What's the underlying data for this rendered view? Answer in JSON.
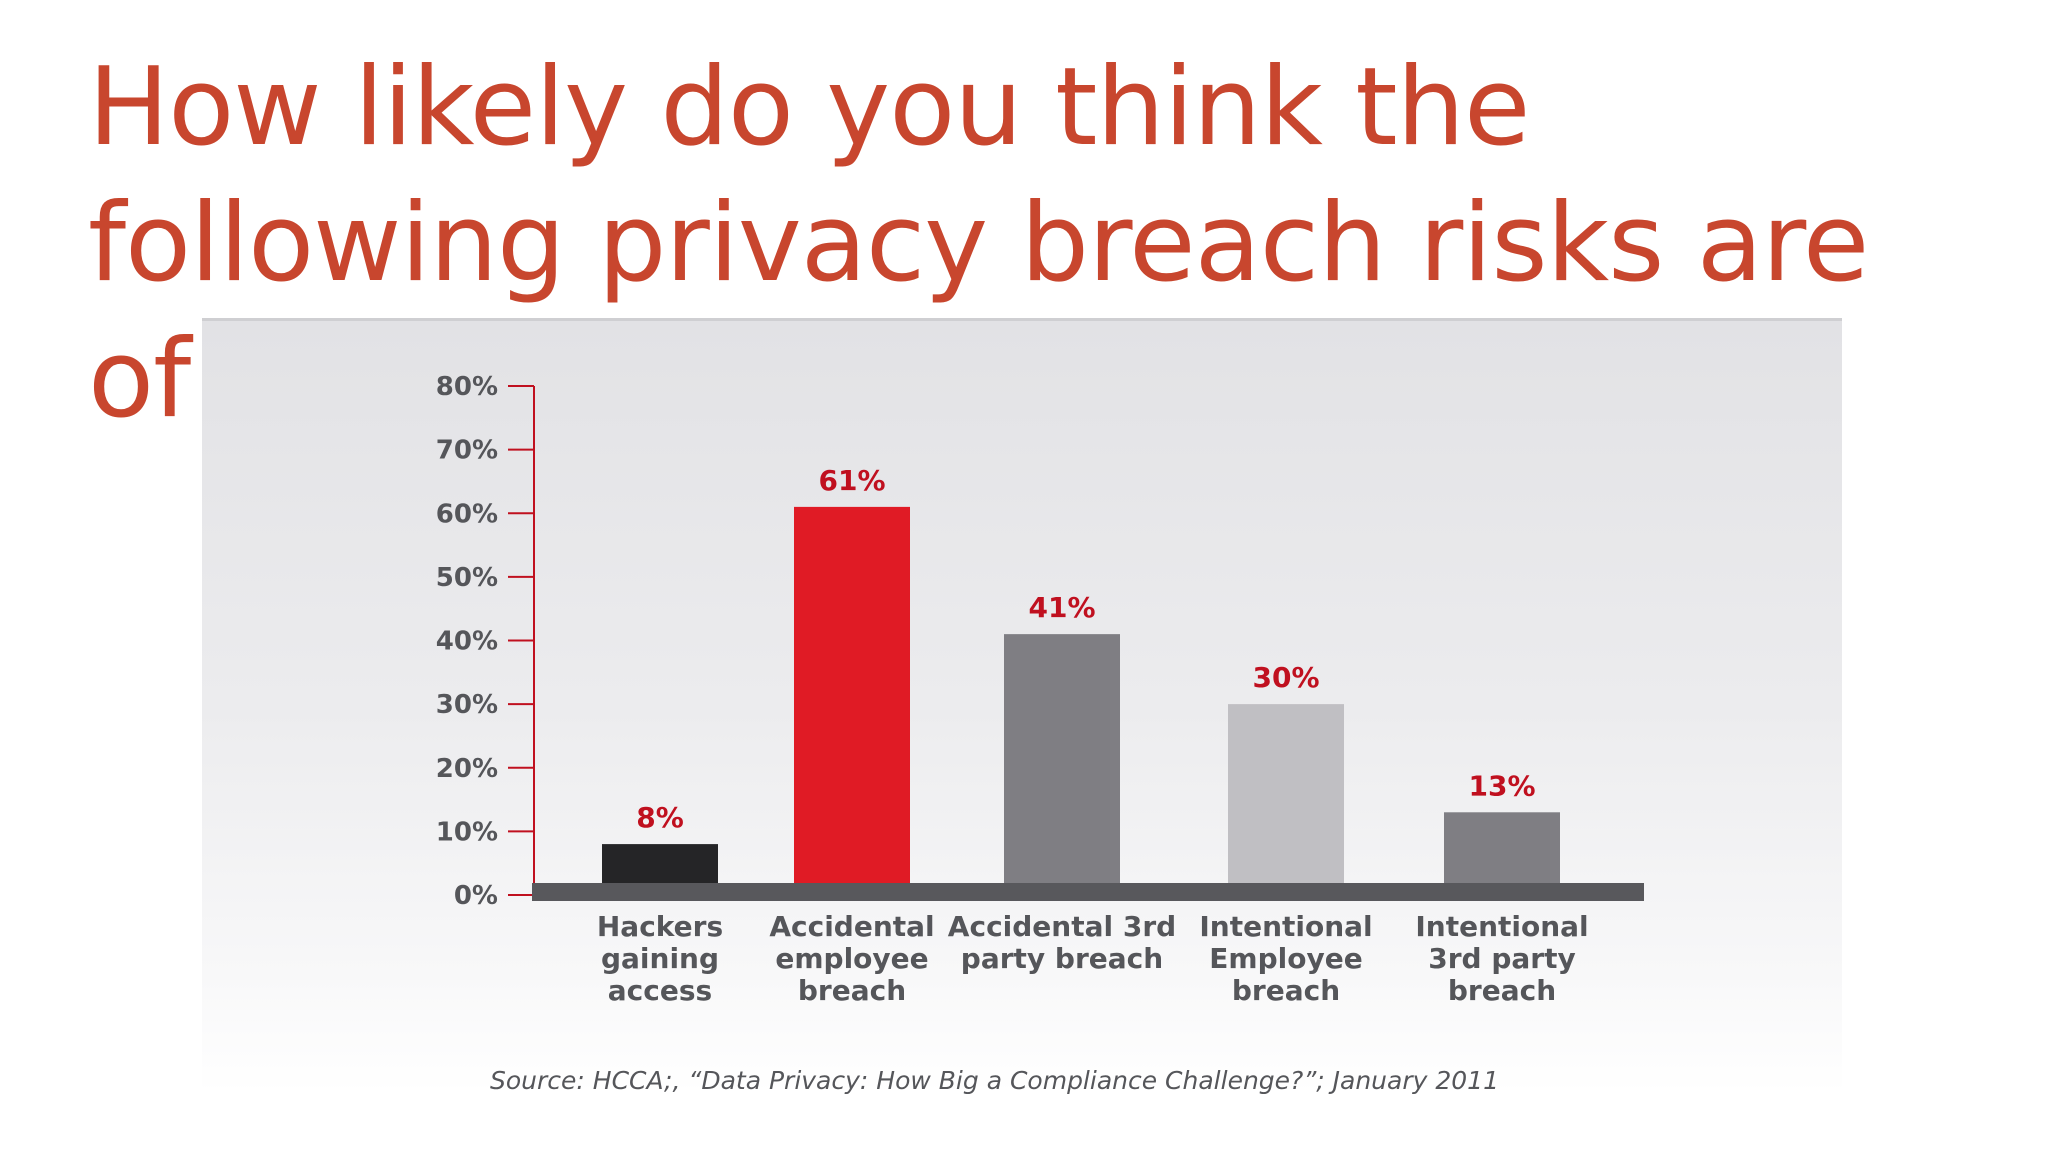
{
  "slide": {
    "title": "How likely do you think the following privacy breach risks are of occurring?",
    "source": "Source: HCCA;, “Data Privacy: How Big a Compliance Challenge?”; January 2011"
  },
  "chart_data": {
    "type": "bar",
    "categories": [
      "Hackers gaining access",
      "Accidental employee breach",
      "Accidental 3rd party breach",
      "Intentional Employee breach",
      "Intentional 3rd party breach"
    ],
    "category_lines": [
      [
        "Hackers",
        "gaining",
        "access"
      ],
      [
        "Accidental",
        "employee",
        "breach"
      ],
      [
        "Accidental 3rd",
        "party breach"
      ],
      [
        "Intentional",
        "Employee",
        "breach"
      ],
      [
        "Intentional",
        "3rd party",
        "breach"
      ]
    ],
    "values": [
      8,
      61,
      41,
      30,
      13
    ],
    "value_labels": [
      "8%",
      "61%",
      "41%",
      "30%",
      "13%"
    ],
    "bar_colors": [
      "#252527",
      "#e01b25",
      "#7f7e83",
      "#c0bfc3",
      "#7f7e83"
    ],
    "ylim": [
      0,
      80
    ],
    "yticks": [
      0,
      10,
      20,
      30,
      40,
      50,
      60,
      70,
      80
    ],
    "ytick_labels": [
      "0%",
      "10%",
      "20%",
      "30%",
      "40%",
      "50%",
      "60%",
      "70%",
      "80%"
    ],
    "axis_color": "#c0101f",
    "baseline_color": "#58585c",
    "grid": false,
    "legend": "none",
    "xlabel": "",
    "ylabel": ""
  }
}
